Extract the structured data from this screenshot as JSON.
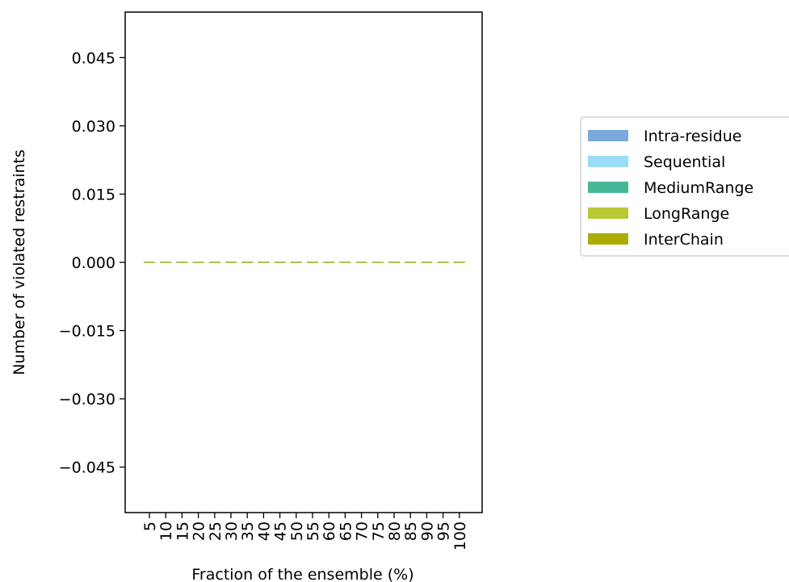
{
  "chart_data": {
    "type": "bar",
    "stacked": true,
    "xlabel": "Fraction of the ensemble (%)",
    "ylabel": "Number of violated restraints",
    "categories": [
      "5",
      "10",
      "15",
      "20",
      "25",
      "30",
      "35",
      "40",
      "45",
      "50",
      "55",
      "60",
      "65",
      "70",
      "75",
      "80",
      "85",
      "90",
      "95",
      "100"
    ],
    "ylim": [
      -0.055,
      0.055
    ],
    "yticks": [
      "0.045",
      "0.030",
      "0.015",
      "0.000",
      "−0.015",
      "−0.030",
      "−0.045"
    ],
    "ytick_values": [
      0.045,
      0.03,
      0.015,
      0.0,
      -0.015,
      -0.03,
      -0.045
    ],
    "grid": false,
    "legend_position": "right",
    "series": [
      {
        "name": "Intra-residue",
        "color": "#7aaadb",
        "values": [
          0,
          0,
          0,
          0,
          0,
          0,
          0,
          0,
          0,
          0,
          0,
          0,
          0,
          0,
          0,
          0,
          0,
          0,
          0,
          0
        ]
      },
      {
        "name": "Sequential",
        "color": "#9adcf8",
        "values": [
          0,
          0,
          0,
          0,
          0,
          0,
          0,
          0,
          0,
          0,
          0,
          0,
          0,
          0,
          0,
          0,
          0,
          0,
          0,
          0
        ]
      },
      {
        "name": "MediumRange",
        "color": "#46b897",
        "values": [
          0,
          0,
          0,
          0,
          0,
          0,
          0,
          0,
          0,
          0,
          0,
          0,
          0,
          0,
          0,
          0,
          0,
          0,
          0,
          0
        ]
      },
      {
        "name": "LongRange",
        "color": "#b8c934",
        "values": [
          0,
          0,
          0,
          0,
          0,
          0,
          0,
          0,
          0,
          0,
          0,
          0,
          0,
          0,
          0,
          0,
          0,
          0,
          0,
          0
        ]
      },
      {
        "name": "InterChain",
        "color": "#adac07",
        "values": [
          0,
          0,
          0,
          0,
          0,
          0,
          0,
          0,
          0,
          0,
          0,
          0,
          0,
          0,
          0,
          0,
          0,
          0,
          0,
          0
        ]
      }
    ]
  }
}
